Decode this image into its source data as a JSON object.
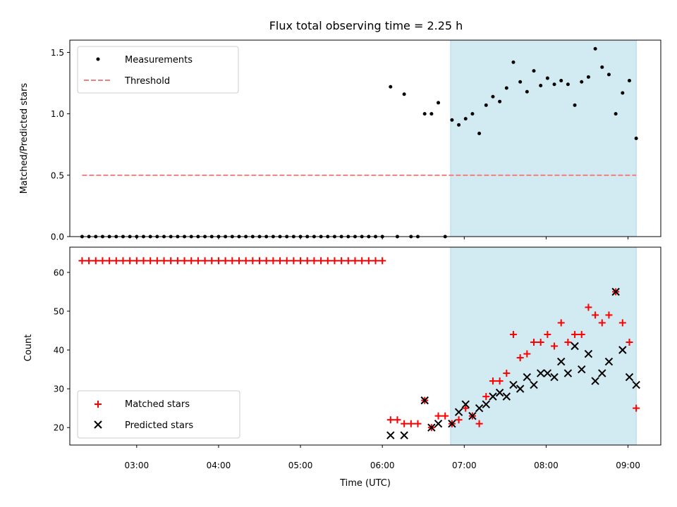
{
  "chart_data": [
    {
      "type": "scatter",
      "title": "Flux total observing time = 2.25 h",
      "xlabel": "",
      "ylabel": "Matched/Predicted stars",
      "xlim": [
        "02:11",
        "09:24"
      ],
      "ylim": [
        0,
        1.6
      ],
      "yticks": [
        0.0,
        0.5,
        1.0,
        1.5
      ],
      "ytick_labels": [
        "0.0",
        "0.5",
        "1.0",
        "1.5"
      ],
      "grid": false,
      "legend": "upper-left",
      "shaded_span": [
        "06:50",
        "09:06"
      ],
      "shade_color": "#add8e6",
      "series": [
        {
          "name": "Measurements",
          "marker": "dot",
          "color": "#000000",
          "points": [
            [
              "02:20",
              0
            ],
            [
              "02:25",
              0
            ],
            [
              "02:30",
              0
            ],
            [
              "02:35",
              0
            ],
            [
              "02:40",
              0
            ],
            [
              "02:45",
              0
            ],
            [
              "02:50",
              0
            ],
            [
              "02:55",
              0
            ],
            [
              "03:00",
              0
            ],
            [
              "03:05",
              0
            ],
            [
              "03:10",
              0
            ],
            [
              "03:15",
              0
            ],
            [
              "03:20",
              0
            ],
            [
              "03:25",
              0
            ],
            [
              "03:30",
              0
            ],
            [
              "03:35",
              0
            ],
            [
              "03:40",
              0
            ],
            [
              "03:45",
              0
            ],
            [
              "03:50",
              0
            ],
            [
              "03:55",
              0
            ],
            [
              "04:00",
              0
            ],
            [
              "04:05",
              0
            ],
            [
              "04:10",
              0
            ],
            [
              "04:15",
              0
            ],
            [
              "04:20",
              0
            ],
            [
              "04:25",
              0
            ],
            [
              "04:30",
              0
            ],
            [
              "04:35",
              0
            ],
            [
              "04:40",
              0
            ],
            [
              "04:45",
              0
            ],
            [
              "04:50",
              0
            ],
            [
              "04:55",
              0
            ],
            [
              "05:00",
              0
            ],
            [
              "05:05",
              0
            ],
            [
              "05:10",
              0
            ],
            [
              "05:15",
              0
            ],
            [
              "05:20",
              0
            ],
            [
              "05:25",
              0
            ],
            [
              "05:30",
              0
            ],
            [
              "05:35",
              0
            ],
            [
              "05:40",
              0
            ],
            [
              "05:45",
              0
            ],
            [
              "05:50",
              0
            ],
            [
              "05:55",
              0
            ],
            [
              "06:00",
              0
            ],
            [
              "06:06",
              1.22
            ],
            [
              "06:11",
              0
            ],
            [
              "06:16",
              1.16
            ],
            [
              "06:21",
              0
            ],
            [
              "06:26",
              0
            ],
            [
              "06:31",
              1.0
            ],
            [
              "06:36",
              1.0
            ],
            [
              "06:41",
              1.09
            ],
            [
              "06:46",
              0
            ],
            [
              "06:51",
              0.95
            ],
            [
              "06:56",
              0.91
            ],
            [
              "07:01",
              0.96
            ],
            [
              "07:06",
              1.0
            ],
            [
              "07:11",
              0.84
            ],
            [
              "07:16",
              1.07
            ],
            [
              "07:21",
              1.14
            ],
            [
              "07:26",
              1.1
            ],
            [
              "07:31",
              1.21
            ],
            [
              "07:36",
              1.42
            ],
            [
              "07:41",
              1.26
            ],
            [
              "07:46",
              1.18
            ],
            [
              "07:51",
              1.35
            ],
            [
              "07:56",
              1.23
            ],
            [
              "08:01",
              1.29
            ],
            [
              "08:06",
              1.24
            ],
            [
              "08:11",
              1.27
            ],
            [
              "08:16",
              1.24
            ],
            [
              "08:21",
              1.07
            ],
            [
              "08:26",
              1.26
            ],
            [
              "08:31",
              1.3
            ],
            [
              "08:36",
              1.53
            ],
            [
              "08:41",
              1.38
            ],
            [
              "08:46",
              1.32
            ],
            [
              "08:51",
              1.0
            ],
            [
              "08:56",
              1.17
            ],
            [
              "09:01",
              1.27
            ],
            [
              "09:06",
              0.8
            ]
          ]
        },
        {
          "name": "Threshold",
          "marker": "dashed-line",
          "color": "#f08080",
          "points": [
            [
              "02:20",
              0.5
            ],
            [
              "09:06",
              0.5
            ]
          ]
        }
      ]
    },
    {
      "type": "scatter",
      "title": "",
      "xlabel": "Time (UTC)",
      "ylabel": "Count",
      "xlim": [
        "02:11",
        "09:24"
      ],
      "ylim": [
        15.5,
        66.5
      ],
      "yticks": [
        20,
        30,
        40,
        50,
        60
      ],
      "xticks": [
        "03:00",
        "04:00",
        "05:00",
        "06:00",
        "07:00",
        "08:00",
        "09:00"
      ],
      "grid": false,
      "legend": "lower-left",
      "shaded_span": [
        "06:50",
        "09:06"
      ],
      "shade_color": "#add8e6",
      "series": [
        {
          "name": "Matched stars",
          "marker": "plus",
          "color": "#ff0000",
          "points": [
            [
              "02:20",
              63
            ],
            [
              "02:25",
              63
            ],
            [
              "02:30",
              63
            ],
            [
              "02:35",
              63
            ],
            [
              "02:40",
              63
            ],
            [
              "02:45",
              63
            ],
            [
              "02:50",
              63
            ],
            [
              "02:55",
              63
            ],
            [
              "03:00",
              63
            ],
            [
              "03:05",
              63
            ],
            [
              "03:10",
              63
            ],
            [
              "03:15",
              63
            ],
            [
              "03:20",
              63
            ],
            [
              "03:25",
              63
            ],
            [
              "03:30",
              63
            ],
            [
              "03:35",
              63
            ],
            [
              "03:40",
              63
            ],
            [
              "03:45",
              63
            ],
            [
              "03:50",
              63
            ],
            [
              "03:55",
              63
            ],
            [
              "04:00",
              63
            ],
            [
              "04:05",
              63
            ],
            [
              "04:10",
              63
            ],
            [
              "04:15",
              63
            ],
            [
              "04:20",
              63
            ],
            [
              "04:25",
              63
            ],
            [
              "04:30",
              63
            ],
            [
              "04:35",
              63
            ],
            [
              "04:40",
              63
            ],
            [
              "04:45",
              63
            ],
            [
              "04:50",
              63
            ],
            [
              "04:55",
              63
            ],
            [
              "05:00",
              63
            ],
            [
              "05:05",
              63
            ],
            [
              "05:10",
              63
            ],
            [
              "05:15",
              63
            ],
            [
              "05:20",
              63
            ],
            [
              "05:25",
              63
            ],
            [
              "05:30",
              63
            ],
            [
              "05:35",
              63
            ],
            [
              "05:40",
              63
            ],
            [
              "05:45",
              63
            ],
            [
              "05:50",
              63
            ],
            [
              "05:55",
              63
            ],
            [
              "06:00",
              63
            ],
            [
              "06:06",
              22
            ],
            [
              "06:11",
              22
            ],
            [
              "06:16",
              21
            ],
            [
              "06:21",
              21
            ],
            [
              "06:26",
              21
            ],
            [
              "06:31",
              27
            ],
            [
              "06:36",
              20
            ],
            [
              "06:41",
              23
            ],
            [
              "06:46",
              23
            ],
            [
              "06:51",
              21
            ],
            [
              "06:56",
              22
            ],
            [
              "07:01",
              25
            ],
            [
              "07:06",
              23
            ],
            [
              "07:11",
              21
            ],
            [
              "07:16",
              28
            ],
            [
              "07:21",
              32
            ],
            [
              "07:26",
              32
            ],
            [
              "07:31",
              34
            ],
            [
              "07:36",
              44
            ],
            [
              "07:41",
              38
            ],
            [
              "07:46",
              39
            ],
            [
              "07:51",
              42
            ],
            [
              "07:56",
              42
            ],
            [
              "08:01",
              44
            ],
            [
              "08:06",
              41
            ],
            [
              "08:11",
              47
            ],
            [
              "08:16",
              42
            ],
            [
              "08:21",
              44
            ],
            [
              "08:26",
              44
            ],
            [
              "08:31",
              51
            ],
            [
              "08:36",
              49
            ],
            [
              "08:41",
              47
            ],
            [
              "08:46",
              49
            ],
            [
              "08:51",
              55
            ],
            [
              "08:56",
              47
            ],
            [
              "09:01",
              42
            ],
            [
              "09:06",
              25
            ]
          ]
        },
        {
          "name": "Predicted stars",
          "marker": "x",
          "color": "#000000",
          "points": [
            [
              "06:06",
              18
            ],
            [
              "06:16",
              18
            ],
            [
              "06:31",
              27
            ],
            [
              "06:36",
              20
            ],
            [
              "06:41",
              21
            ],
            [
              "06:51",
              21
            ],
            [
              "06:56",
              24
            ],
            [
              "07:01",
              26
            ],
            [
              "07:06",
              23
            ],
            [
              "07:11",
              25
            ],
            [
              "07:16",
              26
            ],
            [
              "07:21",
              28
            ],
            [
              "07:26",
              29
            ],
            [
              "07:31",
              28
            ],
            [
              "07:36",
              31
            ],
            [
              "07:41",
              30
            ],
            [
              "07:46",
              33
            ],
            [
              "07:51",
              31
            ],
            [
              "07:56",
              34
            ],
            [
              "08:01",
              34
            ],
            [
              "08:06",
              33
            ],
            [
              "08:11",
              37
            ],
            [
              "08:16",
              34
            ],
            [
              "08:21",
              41
            ],
            [
              "08:26",
              35
            ],
            [
              "08:31",
              39
            ],
            [
              "08:36",
              32
            ],
            [
              "08:41",
              34
            ],
            [
              "08:46",
              37
            ],
            [
              "08:51",
              55
            ],
            [
              "08:56",
              40
            ],
            [
              "09:01",
              33
            ],
            [
              "09:06",
              31
            ]
          ]
        }
      ]
    }
  ]
}
